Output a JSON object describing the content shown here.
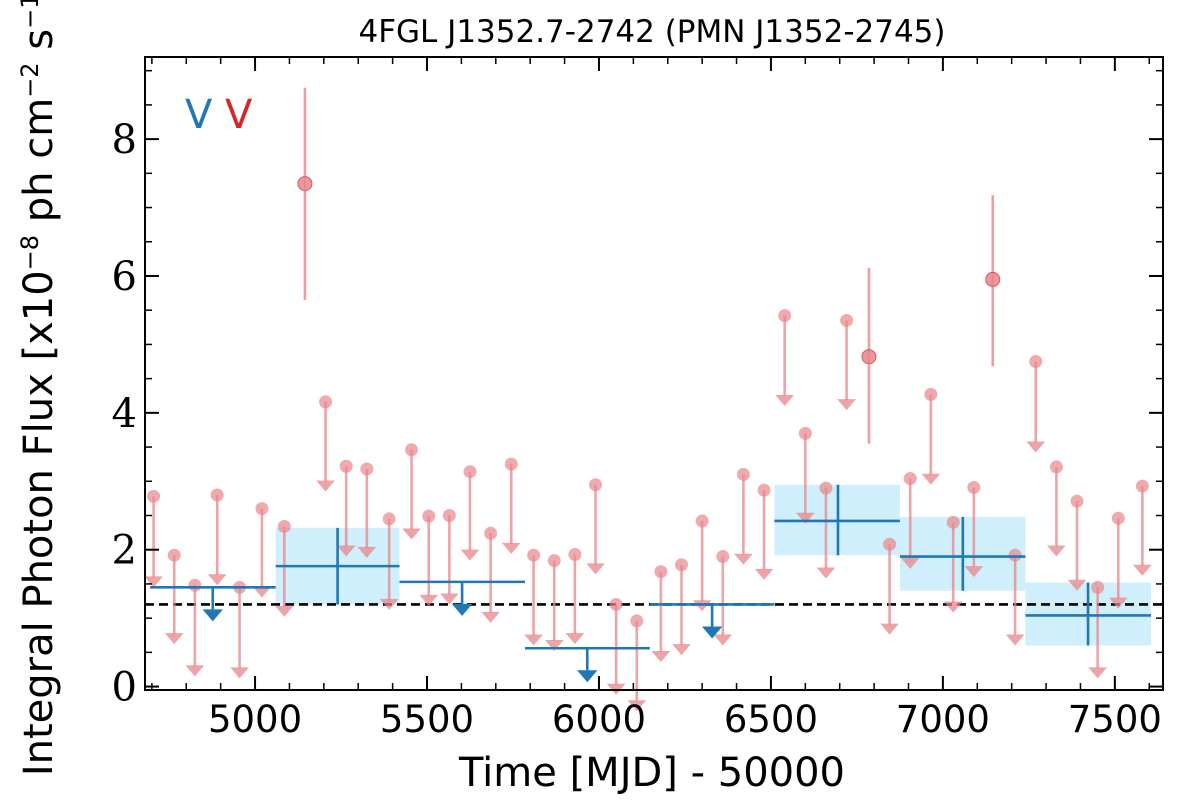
{
  "chart_data": {
    "type": "scatter",
    "title": "4FGL J1352.7-2742 (PMN J1352-2745)",
    "xlabel": "Time [MJD] - 50000",
    "ylabel": "Integral Photon Flux [x10",
    "ylabel_exp1": "−8",
    "ylabel_mid": " ph cm",
    "ylabel_exp2": "−2",
    "ylabel_mid2": " s",
    "ylabel_exp3": "−1",
    "ylabel_end": "]",
    "xlim": [
      4680,
      7640
    ],
    "ylim": [
      -0.05,
      9.2
    ],
    "x_ticks": [
      5000,
      5500,
      6000,
      6500,
      7000,
      7500
    ],
    "x_tick_labels": [
      "5000",
      "5500",
      "6000",
      "6500",
      "7000",
      "7500"
    ],
    "y_ticks": [
      0,
      2,
      4,
      6,
      8
    ],
    "y_tick_labels": [
      "0",
      "2",
      "4",
      "6",
      "8"
    ],
    "legend": [
      {
        "label": "V",
        "color": "#1f77b4"
      },
      {
        "label": "V",
        "color": "#d62728"
      }
    ],
    "mean_flux_line": 1.2,
    "colors": {
      "fine_bins": "#e8868a",
      "coarse_bins": "#1f77b4",
      "coarse_band": "#cdeefc",
      "mean_line": "#000000"
    },
    "fine_detections": [
      {
        "x": 5145,
        "y": 7.35,
        "yerr_low": 5.65,
        "yerr_high": 8.75
      },
      {
        "x": 6785,
        "y": 4.82,
        "yerr_low": 3.55,
        "yerr_high": 6.12
      },
      {
        "x": 7145,
        "y": 5.95,
        "yerr_low": 4.68,
        "yerr_high": 7.18
      }
    ],
    "fine_upper_limits": [
      {
        "x": 4705,
        "ul": 2.78,
        "arrow_to": 1.45
      },
      {
        "x": 4765,
        "ul": 1.92,
        "arrow_to": 0.62
      },
      {
        "x": 4825,
        "ul": 1.48,
        "arrow_to": 0.15
      },
      {
        "x": 4890,
        "ul": 2.8,
        "arrow_to": 1.48
      },
      {
        "x": 4955,
        "ul": 1.45,
        "arrow_to": 0.12
      },
      {
        "x": 5020,
        "ul": 2.6,
        "arrow_to": 1.3
      },
      {
        "x": 5085,
        "ul": 2.34,
        "arrow_to": 1.02
      },
      {
        "x": 5205,
        "ul": 4.16,
        "arrow_to": 2.85
      },
      {
        "x": 5265,
        "ul": 3.22,
        "arrow_to": 1.9
      },
      {
        "x": 5325,
        "ul": 3.18,
        "arrow_to": 1.88
      },
      {
        "x": 5390,
        "ul": 2.45,
        "arrow_to": 1.12
      },
      {
        "x": 5455,
        "ul": 3.46,
        "arrow_to": 2.15
      },
      {
        "x": 5505,
        "ul": 2.49,
        "arrow_to": 1.18
      },
      {
        "x": 5565,
        "ul": 2.5,
        "arrow_to": 1.2
      },
      {
        "x": 5625,
        "ul": 3.14,
        "arrow_to": 1.84
      },
      {
        "x": 5685,
        "ul": 2.24,
        "arrow_to": 0.93
      },
      {
        "x": 5745,
        "ul": 3.25,
        "arrow_to": 1.94
      },
      {
        "x": 5810,
        "ul": 1.92,
        "arrow_to": 0.6
      },
      {
        "x": 5870,
        "ul": 1.84,
        "arrow_to": 0.52
      },
      {
        "x": 5930,
        "ul": 1.93,
        "arrow_to": 0.62
      },
      {
        "x": 5990,
        "ul": 2.95,
        "arrow_to": 1.64
      },
      {
        "x": 6050,
        "ul": 1.2,
        "arrow_to": -0.12
      },
      {
        "x": 6110,
        "ul": 0.96,
        "arrow_to": -0.36
      },
      {
        "x": 6180,
        "ul": 1.68,
        "arrow_to": 0.36
      },
      {
        "x": 6240,
        "ul": 1.78,
        "arrow_to": 0.46
      },
      {
        "x": 6300,
        "ul": 2.42,
        "arrow_to": 1.1
      },
      {
        "x": 6360,
        "ul": 1.9,
        "arrow_to": 0.6
      },
      {
        "x": 6420,
        "ul": 3.1,
        "arrow_to": 1.78
      },
      {
        "x": 6480,
        "ul": 2.87,
        "arrow_to": 1.56
      },
      {
        "x": 6540,
        "ul": 5.42,
        "arrow_to": 4.1
      },
      {
        "x": 6600,
        "ul": 3.7,
        "arrow_to": 2.38
      },
      {
        "x": 6660,
        "ul": 2.9,
        "arrow_to": 1.58
      },
      {
        "x": 6720,
        "ul": 5.35,
        "arrow_to": 4.04
      },
      {
        "x": 6845,
        "ul": 2.08,
        "arrow_to": 0.76
      },
      {
        "x": 6905,
        "ul": 3.04,
        "arrow_to": 1.72
      },
      {
        "x": 6965,
        "ul": 4.27,
        "arrow_to": 2.95
      },
      {
        "x": 7030,
        "ul": 2.4,
        "arrow_to": 1.08
      },
      {
        "x": 7090,
        "ul": 2.91,
        "arrow_to": 1.6
      },
      {
        "x": 7210,
        "ul": 1.92,
        "arrow_to": 0.6
      },
      {
        "x": 7270,
        "ul": 4.75,
        "arrow_to": 3.42
      },
      {
        "x": 7330,
        "ul": 3.21,
        "arrow_to": 1.9
      },
      {
        "x": 7390,
        "ul": 2.71,
        "arrow_to": 1.4
      },
      {
        "x": 7450,
        "ul": 1.45,
        "arrow_to": 0.12
      },
      {
        "x": 7510,
        "ul": 2.46,
        "arrow_to": 1.14
      },
      {
        "x": 7580,
        "ul": 2.93,
        "arrow_to": 1.62
      }
    ],
    "coarse_detections": [
      {
        "x0": 5060,
        "x1": 5420,
        "x": 5240,
        "y": 1.76,
        "ylo": 1.2,
        "yhi": 2.32
      },
      {
        "x0": 6510,
        "x1": 6875,
        "x": 6695,
        "y": 2.42,
        "ylo": 1.92,
        "yhi": 2.95
      },
      {
        "x0": 6875,
        "x1": 7240,
        "x": 7058,
        "y": 1.9,
        "ylo": 1.4,
        "yhi": 2.48
      },
      {
        "x0": 7240,
        "x1": 7605,
        "x": 7422,
        "y": 1.04,
        "ylo": 0.6,
        "yhi": 1.52
      }
    ],
    "coarse_upper_limits": [
      {
        "x0": 4695,
        "x1": 5060,
        "x": 4877,
        "ul": 1.45
      },
      {
        "x0": 5420,
        "x1": 5785,
        "x": 5602,
        "ul": 1.53
      },
      {
        "x0": 5785,
        "x1": 6148,
        "x": 5966,
        "ul": 0.56
      },
      {
        "x0": 6148,
        "x1": 6510,
        "x": 6329,
        "ul": 1.2
      }
    ]
  }
}
